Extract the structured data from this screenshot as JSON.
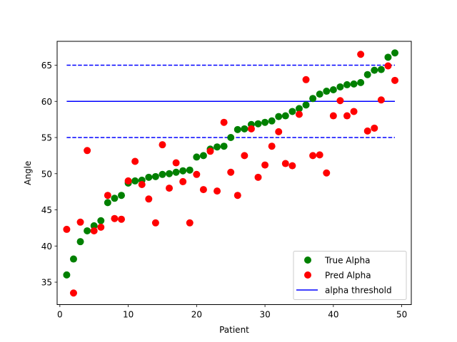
{
  "chart_data": {
    "type": "scatter",
    "title": "",
    "xlabel": "Patient",
    "ylabel": "Angle",
    "xlim": [
      -0.4,
      51.4
    ],
    "ylim": [
      31.9,
      68.3
    ],
    "xticks": [
      0,
      10,
      20,
      30,
      40,
      50
    ],
    "yticks": [
      35,
      40,
      45,
      50,
      55,
      60,
      65
    ],
    "grid": false,
    "legend_position": "lower right",
    "x": [
      1,
      2,
      3,
      4,
      5,
      6,
      7,
      8,
      9,
      10,
      11,
      12,
      13,
      14,
      15,
      16,
      17,
      18,
      19,
      20,
      21,
      22,
      23,
      24,
      25,
      26,
      27,
      28,
      29,
      30,
      31,
      32,
      33,
      34,
      35,
      36,
      37,
      38,
      39,
      40,
      41,
      42,
      43,
      44,
      45,
      46,
      47,
      48,
      49
    ],
    "series": [
      {
        "name": "True Alpha",
        "kind": "scatter",
        "color": "#008000",
        "values": [
          36.0,
          38.2,
          40.6,
          42.1,
          42.8,
          43.5,
          46.0,
          46.6,
          47.0,
          48.7,
          49.0,
          49.1,
          49.5,
          49.6,
          49.9,
          50.0,
          50.2,
          50.4,
          50.5,
          52.3,
          52.5,
          53.4,
          53.7,
          53.8,
          55.0,
          56.1,
          56.2,
          56.8,
          56.9,
          57.1,
          57.3,
          57.9,
          58.0,
          58.6,
          59.0,
          59.5,
          60.4,
          61.0,
          61.4,
          61.6,
          62.0,
          62.3,
          62.4,
          62.6,
          63.7,
          64.3,
          64.4,
          66.1,
          66.7
        ]
      },
      {
        "name": "Pred Alpha",
        "kind": "scatter",
        "color": "#ff0000",
        "values": [
          42.3,
          33.5,
          43.3,
          53.2,
          42.1,
          42.6,
          47.0,
          43.8,
          43.7,
          49.0,
          51.7,
          48.5,
          46.5,
          43.2,
          54.0,
          48.0,
          51.5,
          48.9,
          43.2,
          49.9,
          47.8,
          53.1,
          47.6,
          57.1,
          50.2,
          47.0,
          52.5,
          56.2,
          49.5,
          51.2,
          53.8,
          55.8,
          51.4,
          51.1,
          58.2,
          63.0,
          52.5,
          52.6,
          50.1,
          58.0,
          60.1,
          58.0,
          58.6,
          66.5,
          55.9,
          56.3,
          60.2,
          64.9,
          62.9
        ]
      },
      {
        "name": "alpha threshold",
        "kind": "hline",
        "color": "#0000ff",
        "style": "solid",
        "y": 60,
        "x_range": [
          1,
          49
        ]
      },
      {
        "kind": "hline",
        "color": "#0000ff",
        "style": "dashed",
        "y": 65,
        "x_range": [
          1,
          49
        ]
      },
      {
        "kind": "hline",
        "color": "#0000ff",
        "style": "dashed",
        "y": 55,
        "x_range": [
          1,
          49
        ]
      }
    ]
  }
}
